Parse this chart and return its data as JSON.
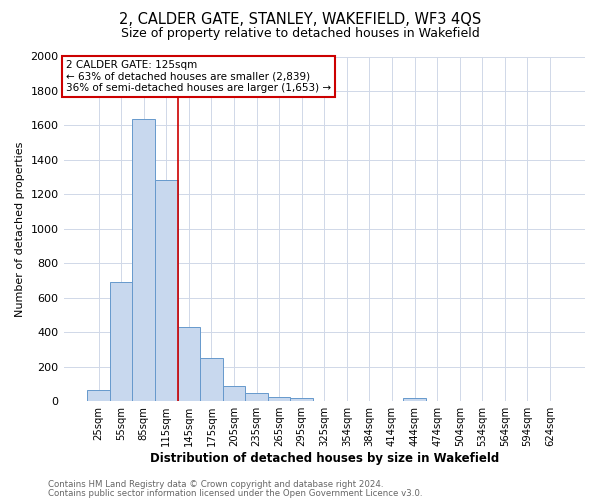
{
  "title": "2, CALDER GATE, STANLEY, WAKEFIELD, WF3 4QS",
  "subtitle": "Size of property relative to detached houses in Wakefield",
  "xlabel": "Distribution of detached houses by size in Wakefield",
  "ylabel": "Number of detached properties",
  "bar_labels": [
    "25sqm",
    "55sqm",
    "85sqm",
    "115sqm",
    "145sqm",
    "175sqm",
    "205sqm",
    "235sqm",
    "265sqm",
    "295sqm",
    "325sqm",
    "354sqm",
    "384sqm",
    "414sqm",
    "444sqm",
    "474sqm",
    "504sqm",
    "534sqm",
    "564sqm",
    "594sqm",
    "624sqm"
  ],
  "bar_values": [
    65,
    690,
    1635,
    1285,
    430,
    250,
    90,
    50,
    25,
    20,
    0,
    0,
    0,
    0,
    20,
    0,
    0,
    0,
    0,
    0,
    0
  ],
  "bar_color": "#c8d8ee",
  "bar_edge_color": "#6699cc",
  "vline_x_index": 3,
  "vline_color": "#cc0000",
  "annotation_title": "2 CALDER GATE: 125sqm",
  "annotation_line1": "← 63% of detached houses are smaller (2,839)",
  "annotation_line2": "36% of semi-detached houses are larger (1,653) →",
  "annotation_box_color": "#ffffff",
  "annotation_box_edge": "#cc0000",
  "ylim": [
    0,
    2000
  ],
  "yticks": [
    0,
    200,
    400,
    600,
    800,
    1000,
    1200,
    1400,
    1600,
    1800,
    2000
  ],
  "footer1": "Contains HM Land Registry data © Crown copyright and database right 2024.",
  "footer2": "Contains public sector information licensed under the Open Government Licence v3.0.",
  "bg_color": "#ffffff",
  "plot_bg_color": "#ffffff",
  "grid_color": "#d0d8e8"
}
